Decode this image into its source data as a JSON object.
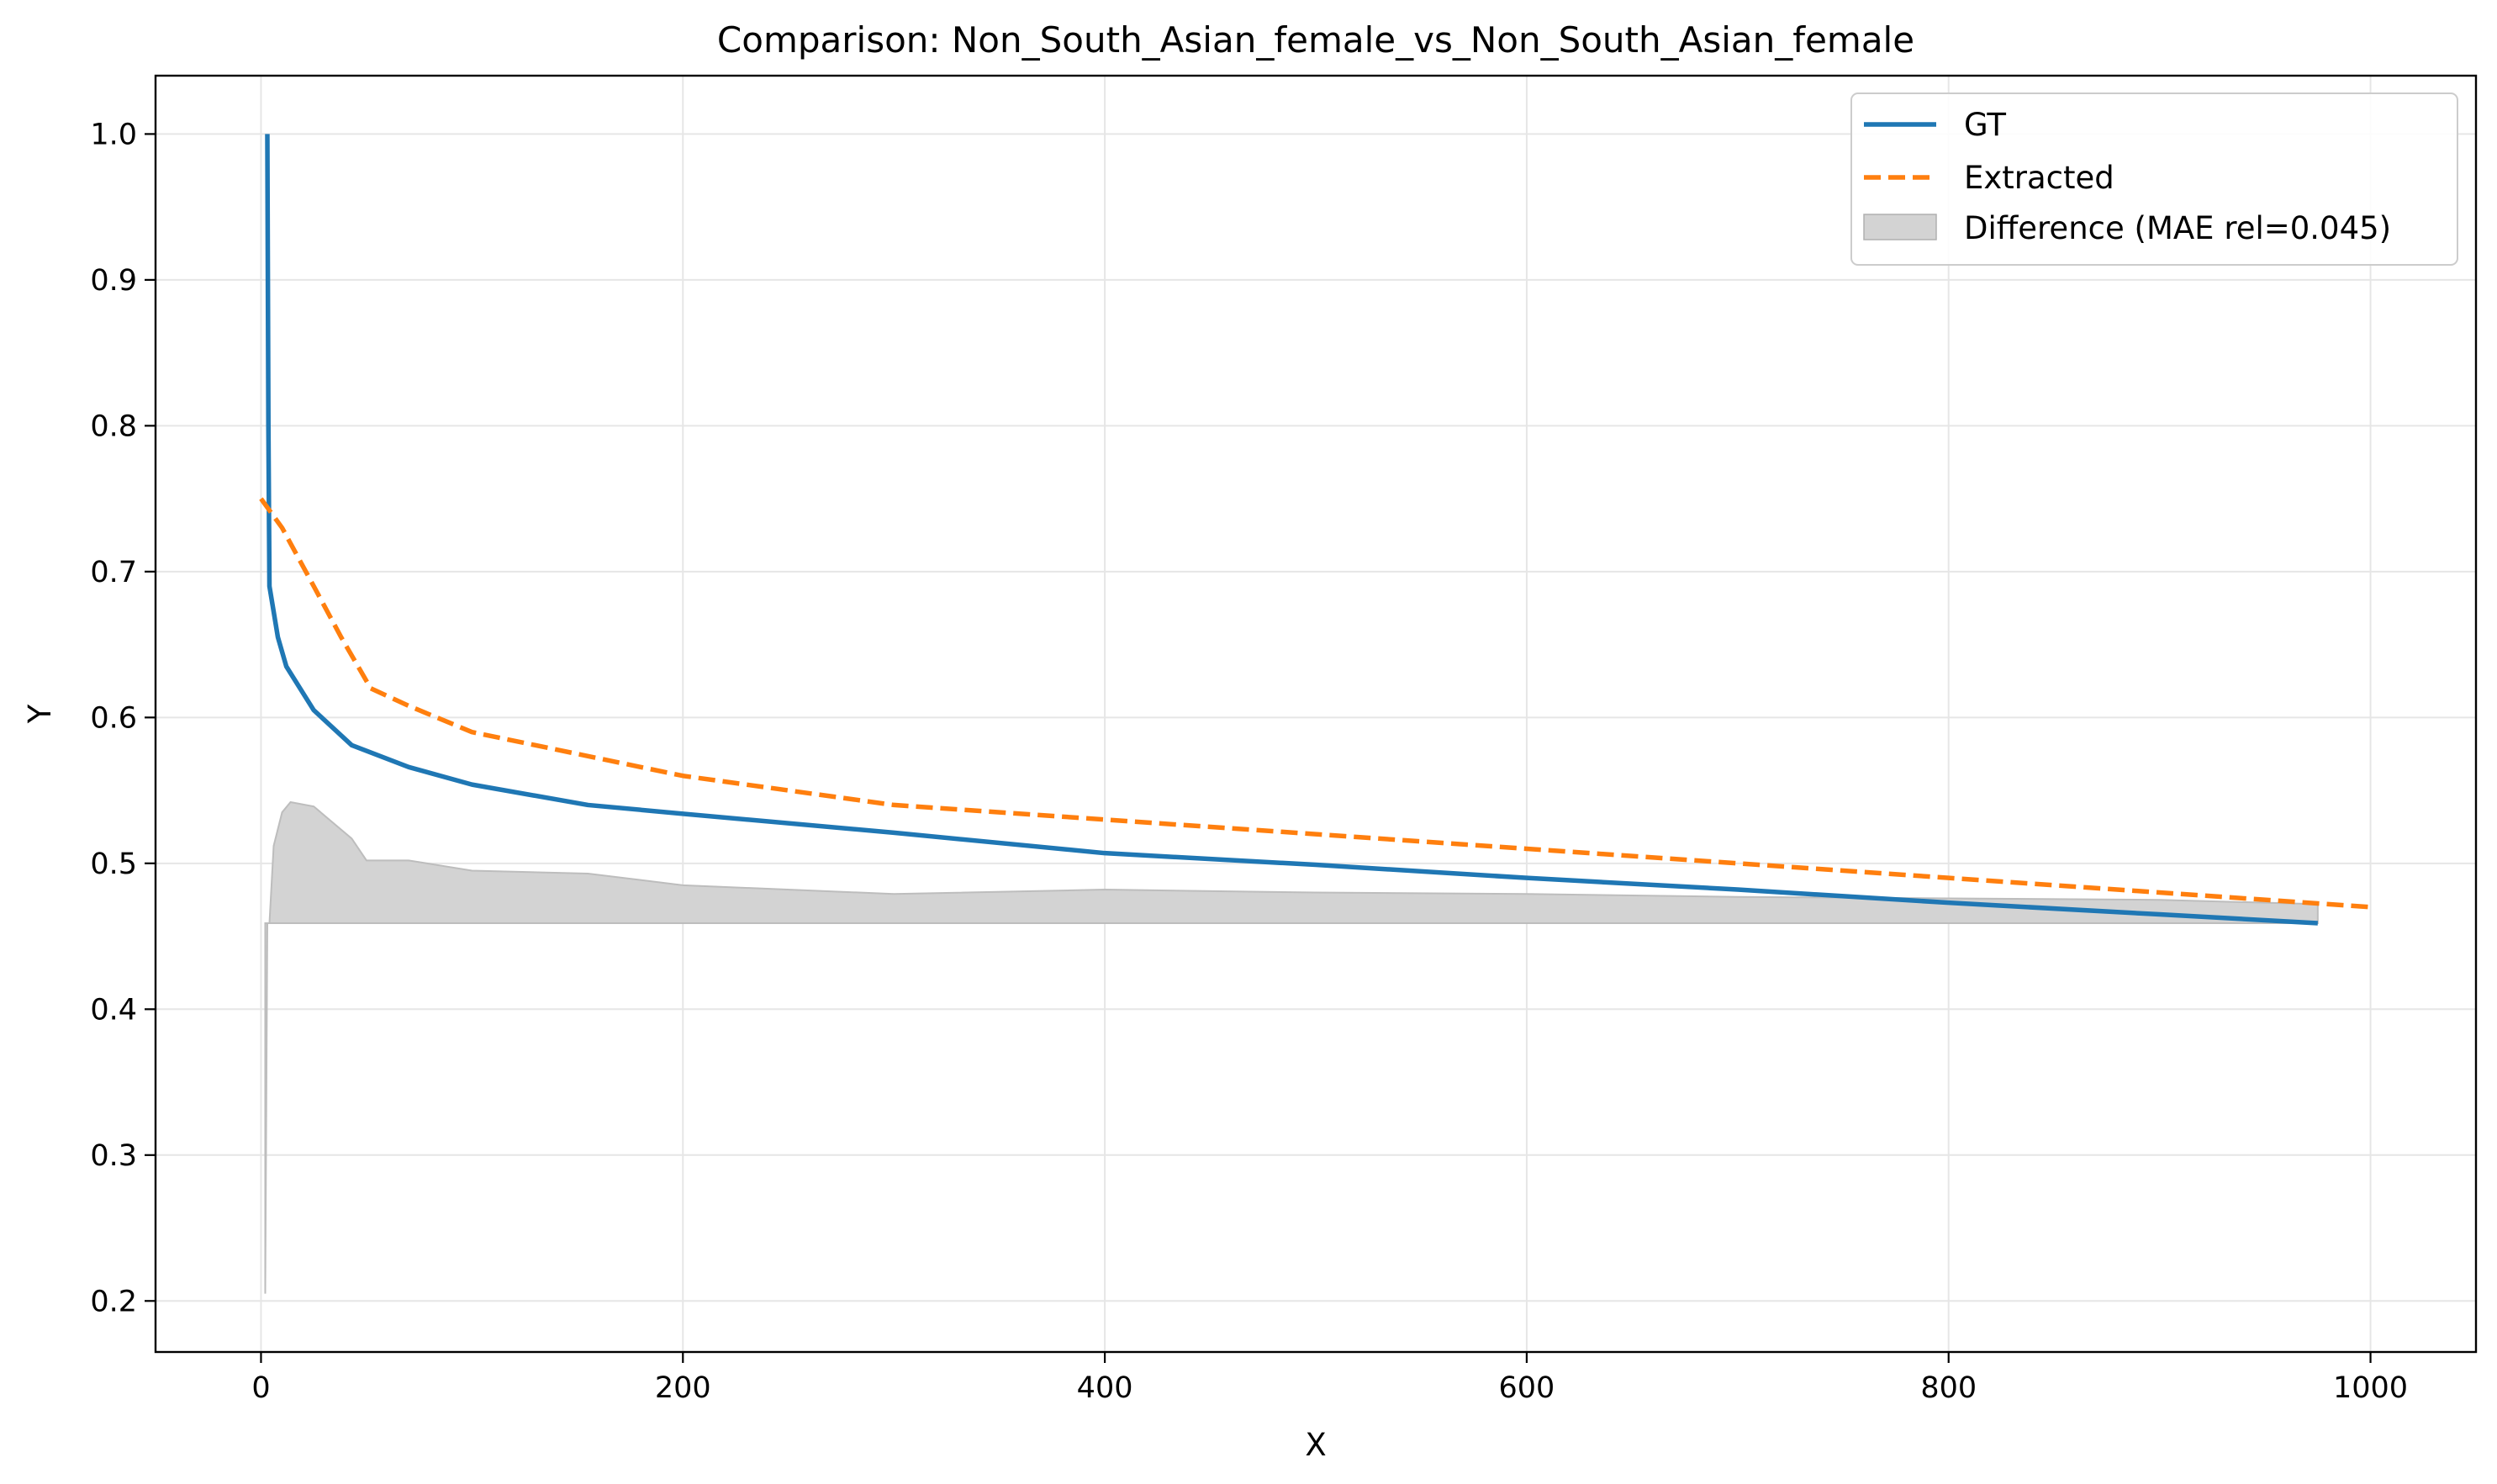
{
  "chart_data": {
    "type": "line",
    "title": "Comparison: Non_South_Asian_female_vs_Non_South_Asian_female",
    "xlabel": "X",
    "ylabel": "Y",
    "xlim": [
      -50,
      1050
    ],
    "ylim": [
      0.165,
      1.04
    ],
    "xticks": [
      0,
      200,
      400,
      600,
      800,
      1000
    ],
    "yticks": [
      0.2,
      0.3,
      0.4,
      0.5,
      0.6,
      0.7,
      0.8,
      0.9,
      1.0
    ],
    "xtick_labels": [
      "0",
      "200",
      "400",
      "600",
      "800",
      "1000"
    ],
    "ytick_labels": [
      "0.2",
      "0.3",
      "0.4",
      "0.5",
      "0.6",
      "0.7",
      "0.8",
      "0.9",
      "1.0"
    ],
    "grid": true,
    "legend_position": "top-right",
    "series": [
      {
        "name": "GT",
        "style": "solid",
        "color": "#1f77b4",
        "x": [
          3,
          3.5,
          4,
          8,
          12,
          25,
          43,
          70,
          100,
          155,
          200,
          300,
          400,
          500,
          600,
          700,
          800,
          900,
          975
        ],
        "y": [
          1.0,
          0.8,
          0.69,
          0.655,
          0.635,
          0.605,
          0.581,
          0.566,
          0.554,
          0.54,
          0.534,
          0.521,
          0.507,
          0.499,
          0.49,
          0.482,
          0.473,
          0.465,
          0.459
        ]
      },
      {
        "name": "Extracted",
        "style": "dashed",
        "color": "#ff7f0e",
        "x": [
          0,
          10,
          25,
          38,
          52,
          70,
          100,
          150,
          200,
          300,
          400,
          500,
          600,
          700,
          800,
          900,
          1000
        ],
        "y": [
          0.75,
          0.73,
          0.69,
          0.655,
          0.62,
          0.608,
          0.59,
          0.575,
          0.56,
          0.54,
          0.53,
          0.52,
          0.51,
          0.5,
          0.49,
          0.48,
          0.47
        ]
      }
    ],
    "difference_area": {
      "name": "Difference (MAE rel=0.045)",
      "color": "#d3d3d3",
      "baseline": 0.459,
      "x": [
        2,
        3,
        3.5,
        4,
        6,
        10,
        14,
        25,
        43,
        50,
        70,
        100,
        155,
        200,
        300,
        400,
        500,
        600,
        700,
        800,
        900,
        975
      ],
      "y": [
        0.205,
        0.459,
        0.459,
        0.459,
        0.512,
        0.535,
        0.542,
        0.539,
        0.517,
        0.502,
        0.502,
        0.495,
        0.493,
        0.485,
        0.479,
        0.482,
        0.48,
        0.479,
        0.477,
        0.476,
        0.475,
        0.472
      ]
    }
  }
}
